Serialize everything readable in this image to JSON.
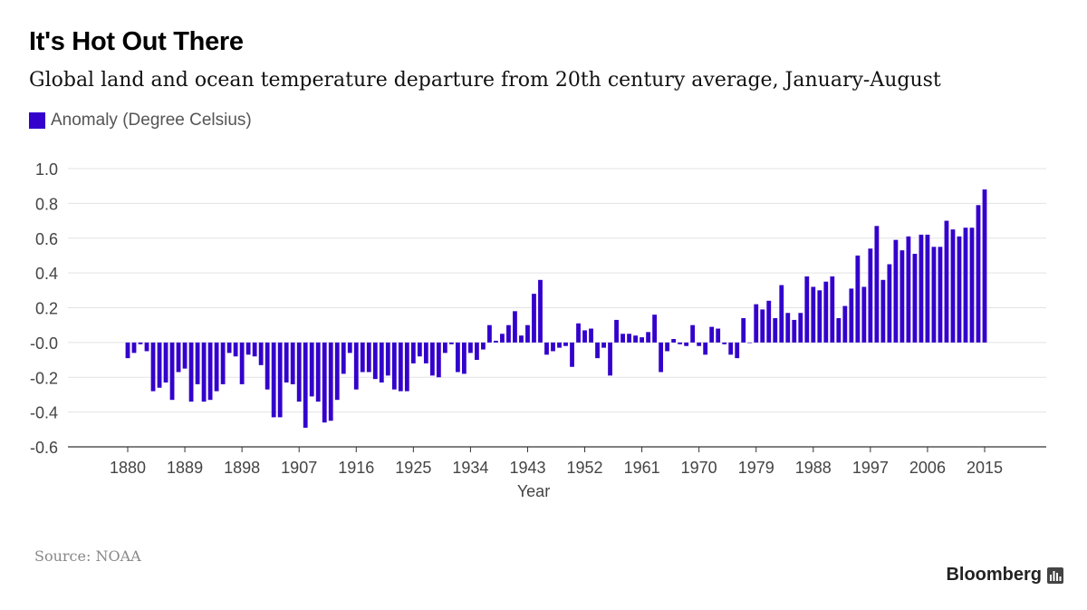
{
  "header": {
    "title": "It's Hot Out There",
    "subtitle": "Global land and ocean temperature departure from 20th century average, January-August"
  },
  "legend": {
    "label": "Anomaly (Degree Celsius)"
  },
  "footer": {
    "source": "Source: NOAA",
    "brand": "Bloomberg"
  },
  "colors": {
    "bar": "#3300cc",
    "grid": "#e3e3e3",
    "axis": "#333333",
    "tick_text": "#444444"
  },
  "chart_data": {
    "type": "bar",
    "title": "It's Hot Out There",
    "subtitle": "Global land and ocean temperature departure from 20th century average, January-August",
    "xlabel": "Year",
    "ylabel": "",
    "series": [
      {
        "name": "Anomaly (Degree Celsius)",
        "x_start": 1880,
        "x_end": 2015,
        "values": [
          -0.09,
          -0.06,
          -0.01,
          -0.05,
          -0.28,
          -0.26,
          -0.23,
          -0.33,
          -0.17,
          -0.15,
          -0.34,
          -0.24,
          -0.34,
          -0.33,
          -0.28,
          -0.24,
          -0.06,
          -0.08,
          -0.24,
          -0.07,
          -0.08,
          -0.13,
          -0.27,
          -0.43,
          -0.43,
          -0.23,
          -0.24,
          -0.34,
          -0.49,
          -0.31,
          -0.34,
          -0.46,
          -0.45,
          -0.33,
          -0.18,
          -0.06,
          -0.27,
          -0.17,
          -0.17,
          -0.21,
          -0.23,
          -0.19,
          -0.27,
          -0.28,
          -0.28,
          -0.12,
          -0.08,
          -0.12,
          -0.19,
          -0.2,
          -0.06,
          -0.01,
          -0.17,
          -0.18,
          -0.06,
          -0.1,
          -0.04,
          0.1,
          0.01,
          0.05,
          0.1,
          0.18,
          0.04,
          0.1,
          0.28,
          0.36,
          -0.07,
          -0.05,
          -0.03,
          -0.02,
          -0.14,
          0.11,
          0.07,
          0.08,
          -0.09,
          -0.03,
          -0.19,
          0.13,
          0.05,
          0.05,
          0.04,
          0.03,
          0.06,
          0.16,
          -0.17,
          -0.05,
          0.02,
          -0.01,
          -0.02,
          0.1,
          -0.02,
          -0.07,
          0.09,
          0.08,
          -0.01,
          -0.07,
          -0.09,
          0.14,
          0.0,
          0.22,
          0.19,
          0.24,
          0.14,
          0.33,
          0.17,
          0.13,
          0.17,
          0.38,
          0.32,
          0.3,
          0.35,
          0.38,
          0.14,
          0.21,
          0.31,
          0.5,
          0.32,
          0.54,
          0.67,
          0.36,
          0.45,
          0.59,
          0.53,
          0.61,
          0.51,
          0.62,
          0.62,
          0.55,
          0.55,
          0.7,
          0.65,
          0.61,
          0.66,
          0.66,
          0.79,
          0.88
        ]
      }
    ],
    "x_ticks": [
      "1880",
      "1889",
      "1898",
      "1907",
      "1916",
      "1925",
      "1934",
      "1943",
      "1952",
      "1961",
      "1970",
      "1979",
      "1988",
      "1997",
      "2006",
      "2015"
    ],
    "y_ticks": [
      "1.0",
      "0.8",
      "0.6",
      "0.4",
      "0.2",
      "-0.0",
      "-0.2",
      "-0.4",
      "-0.6"
    ],
    "ylim": [
      -0.6,
      1.0
    ],
    "xlim": [
      1880,
      2015
    ],
    "grid": true,
    "legend_position": "top-left"
  }
}
